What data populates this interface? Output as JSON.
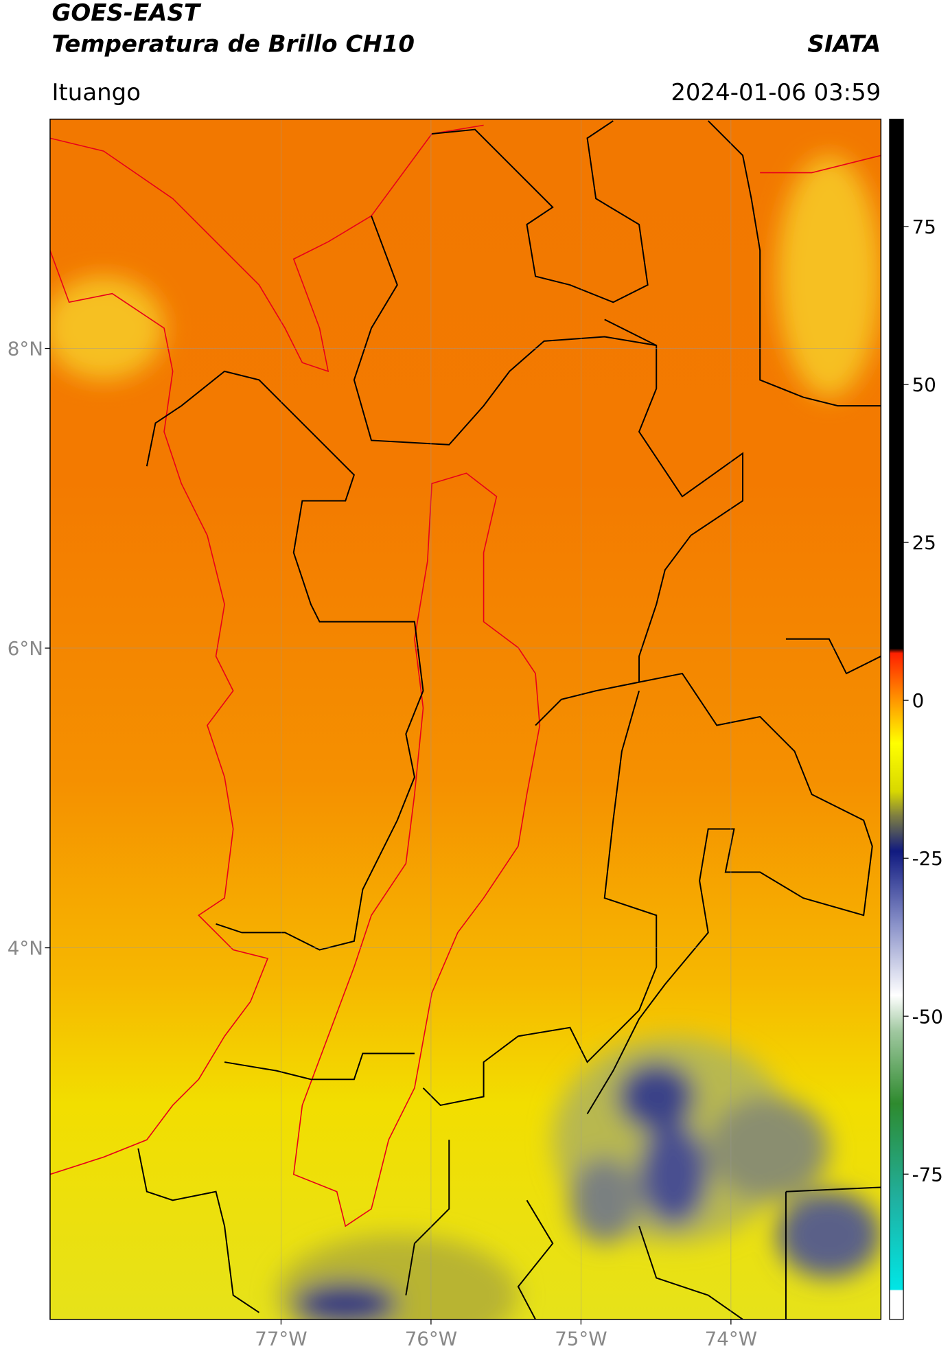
{
  "header": {
    "title": "GOES-EAST",
    "subtitle": "Temperatura de Brillo CH10",
    "source": "SIATA",
    "location": "Ituango",
    "timestamp": "2024-01-06 03:59"
  },
  "map": {
    "xlim": [
      -78.54,
      -73.0
    ],
    "ylim": [
      1.52,
      9.53
    ],
    "xticks": [
      {
        "value": -77,
        "label": "77°W"
      },
      {
        "value": -76,
        "label": "76°W"
      },
      {
        "value": -75,
        "label": "75°W"
      },
      {
        "value": -74,
        "label": "74°W"
      }
    ],
    "yticks": [
      {
        "value": 8,
        "label": "8°N"
      },
      {
        "value": 6,
        "label": "6°N"
      },
      {
        "value": 4,
        "label": "4°N"
      }
    ],
    "grid": true
  },
  "colorbar": {
    "lim": [
      -98,
      92
    ],
    "ticks": [
      75,
      50,
      25,
      0,
      -25,
      -50,
      -75
    ]
  }
}
